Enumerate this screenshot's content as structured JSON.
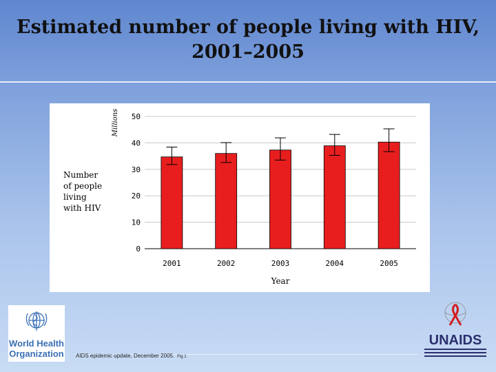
{
  "slide": {
    "title_line1": "Estimated number of people living with HIV,",
    "title_line2": "2001–2005"
  },
  "chart_data": {
    "type": "bar",
    "title": "",
    "categories": [
      "2001",
      "2002",
      "2003",
      "2004",
      "2005"
    ],
    "values": [
      34.7,
      36.0,
      37.3,
      38.9,
      40.3
    ],
    "error_low": [
      31.8,
      32.6,
      33.5,
      35.3,
      36.7
    ],
    "error_high": [
      38.4,
      40.1,
      41.9,
      43.2,
      45.3
    ],
    "ylim": [
      0,
      50
    ],
    "yticks": [
      "0",
      "10",
      "20",
      "30",
      "40",
      "50"
    ],
    "xlabel": "Year",
    "ylabel": [
      "Number",
      "of people",
      "living",
      "with HIV"
    ],
    "units_label": "Millions",
    "grid": true,
    "bar_color": "#e81e1e"
  },
  "footer": {
    "source": "AIDS epidemic update, December 2005.",
    "fig": "Fig 1"
  },
  "logos": {
    "who_line1": "World Health",
    "who_line2": "Organization",
    "unaids": "UNAIDS",
    "unaids_color": "#2b2f6e"
  }
}
